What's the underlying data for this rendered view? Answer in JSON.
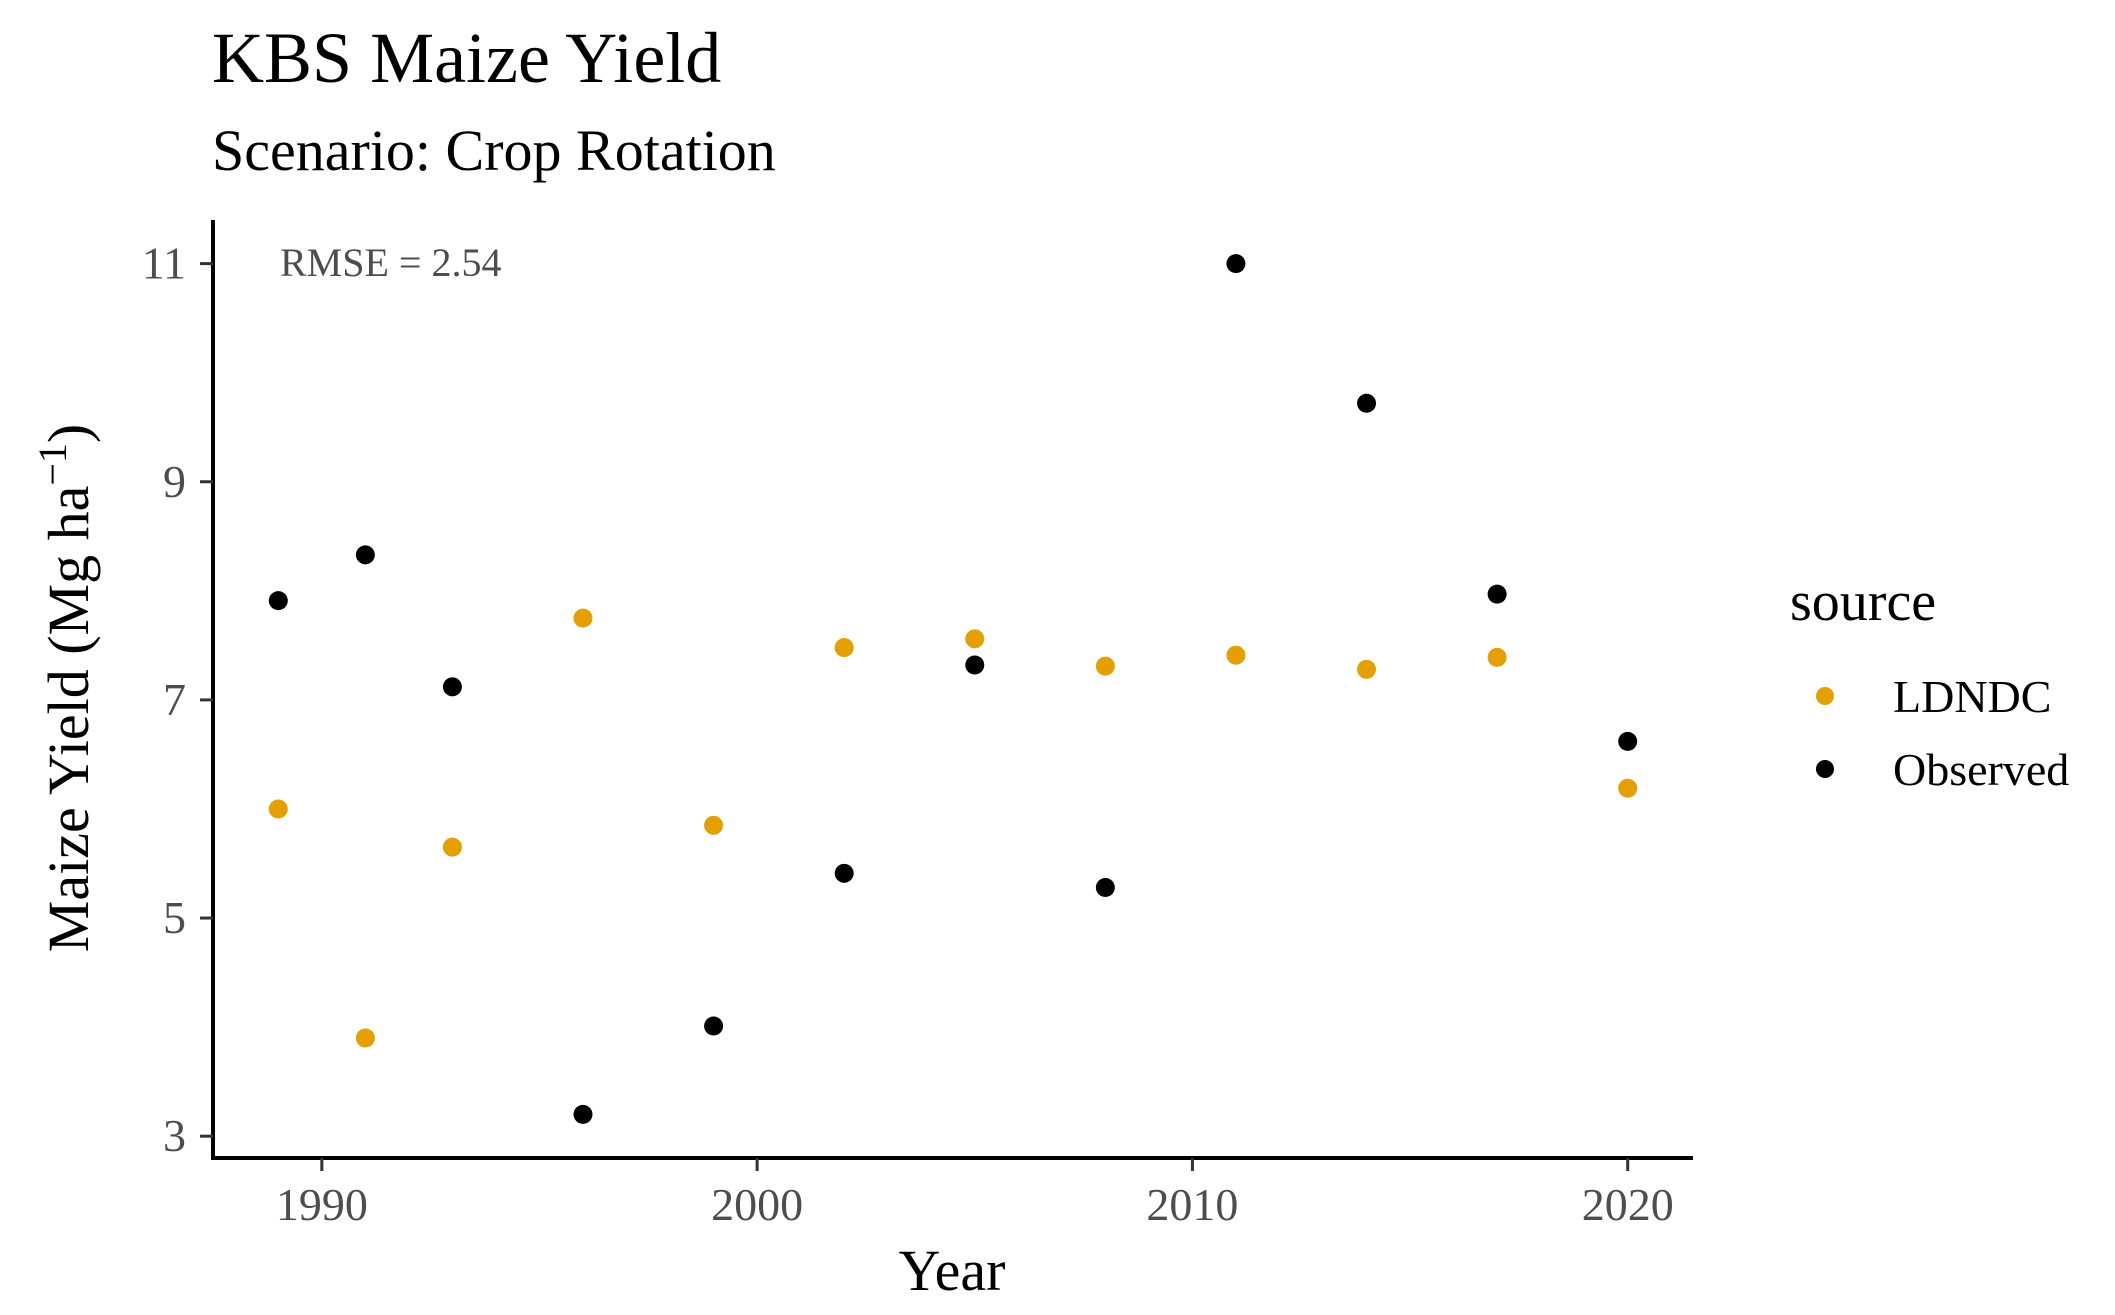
{
  "chart_data": {
    "type": "scatter",
    "title": "KBS Maize Yield",
    "subtitle": "Scenario: Crop Rotation",
    "xlabel": "Year",
    "ylabel": "Maize Yield (Mg ha",
    "ylabel_superscript": "−1",
    "ylabel_close": ")",
    "xlim": [
      1987.5,
      2021.5
    ],
    "ylim": [
      2.8,
      11.4
    ],
    "x_ticks": [
      1990,
      2000,
      2010,
      2020
    ],
    "y_ticks": [
      3,
      5,
      7,
      9,
      11
    ],
    "grid": false,
    "annotation": "RMSE = 2.54",
    "legend": {
      "title": "source",
      "placement": "right",
      "entries": [
        {
          "label": "LDNDC",
          "color": "#E69F00"
        },
        {
          "label": "Observed",
          "color": "#000000"
        }
      ]
    },
    "series": [
      {
        "name": "LDNDC",
        "color": "#E69F00",
        "points": [
          {
            "x": 1989,
            "y": 6.0
          },
          {
            "x": 1991,
            "y": 3.9
          },
          {
            "x": 1993,
            "y": 5.65
          },
          {
            "x": 1996,
            "y": 7.75
          },
          {
            "x": 1999,
            "y": 5.85
          },
          {
            "x": 2002,
            "y": 7.48
          },
          {
            "x": 2005,
            "y": 7.56
          },
          {
            "x": 2008,
            "y": 7.31
          },
          {
            "x": 2011,
            "y": 7.41
          },
          {
            "x": 2014,
            "y": 7.28
          },
          {
            "x": 2017,
            "y": 7.39
          },
          {
            "x": 2020,
            "y": 6.19
          }
        ]
      },
      {
        "name": "Observed",
        "color": "#000000",
        "points": [
          {
            "x": 1989,
            "y": 7.91
          },
          {
            "x": 1991,
            "y": 8.33
          },
          {
            "x": 1993,
            "y": 7.12
          },
          {
            "x": 1996,
            "y": 3.2
          },
          {
            "x": 1999,
            "y": 4.01
          },
          {
            "x": 2002,
            "y": 5.41
          },
          {
            "x": 2005,
            "y": 7.32
          },
          {
            "x": 2008,
            "y": 5.28
          },
          {
            "x": 2011,
            "y": 11.0
          },
          {
            "x": 2014,
            "y": 9.72
          },
          {
            "x": 2017,
            "y": 7.97
          },
          {
            "x": 2020,
            "y": 6.62
          }
        ]
      }
    ]
  }
}
